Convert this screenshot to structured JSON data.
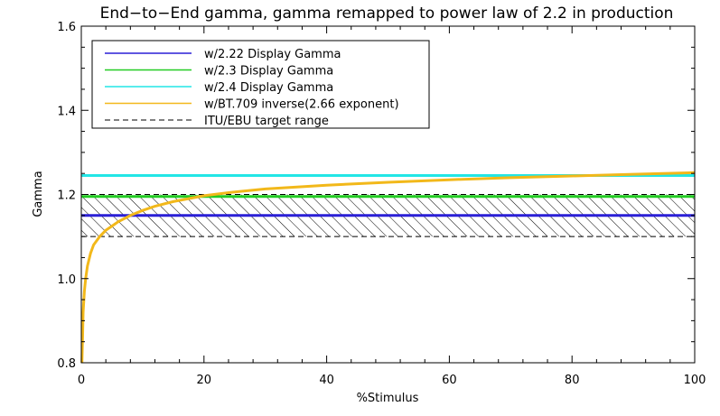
{
  "chart_data": {
    "type": "line",
    "title": "End−to−End gamma, gamma remapped to power law of 2.2 in production",
    "xlabel": "%Stimulus",
    "ylabel": "Gamma",
    "xlim": [
      0,
      100
    ],
    "ylim": [
      0.8,
      1.6
    ],
    "x_ticks": [
      0,
      20,
      40,
      60,
      80,
      100
    ],
    "x_tick_labels": [
      "0",
      "20",
      "40",
      "60",
      "80",
      "100"
    ],
    "y_ticks": [
      0.8,
      1.0,
      1.2,
      1.4,
      1.6
    ],
    "y_tick_labels": [
      "0.8",
      "1.0",
      "1.2",
      "1.4",
      "1.6"
    ],
    "grid": false,
    "legend_position": "top-left",
    "series": [
      {
        "name": "w/2.22 Display Gamma",
        "color": "#2a1fd6",
        "x": [
          0,
          100
        ],
        "y": [
          1.15,
          1.15
        ]
      },
      {
        "name": "w/2.3 Display Gamma",
        "color": "#22cc22",
        "x": [
          0,
          100
        ],
        "y": [
          1.195,
          1.195
        ]
      },
      {
        "name": "w/2.4 Display Gamma",
        "color": "#22e6e6",
        "x": [
          0,
          100
        ],
        "y": [
          1.245,
          1.245
        ]
      },
      {
        "name": "w/BT.709 inverse(2.66 exponent)",
        "color": "#f2b81a",
        "x": [
          0.1,
          0.2,
          0.3,
          0.5,
          0.7,
          1,
          1.5,
          2,
          3,
          4,
          5,
          6,
          8,
          10,
          12,
          15,
          20,
          25,
          30,
          40,
          50,
          60,
          70,
          80,
          90,
          100
        ],
        "y": [
          0.8,
          0.86,
          0.92,
          0.97,
          1.0,
          1.03,
          1.06,
          1.08,
          1.1,
          1.115,
          1.125,
          1.135,
          1.15,
          1.162,
          1.172,
          1.183,
          1.197,
          1.206,
          1.213,
          1.222,
          1.229,
          1.235,
          1.24,
          1.244,
          1.248,
          1.252
        ]
      },
      {
        "name": "ITU/EBU target range",
        "color": "#000000",
        "style": "dashed",
        "y_range": [
          1.1,
          1.2
        ]
      }
    ]
  }
}
